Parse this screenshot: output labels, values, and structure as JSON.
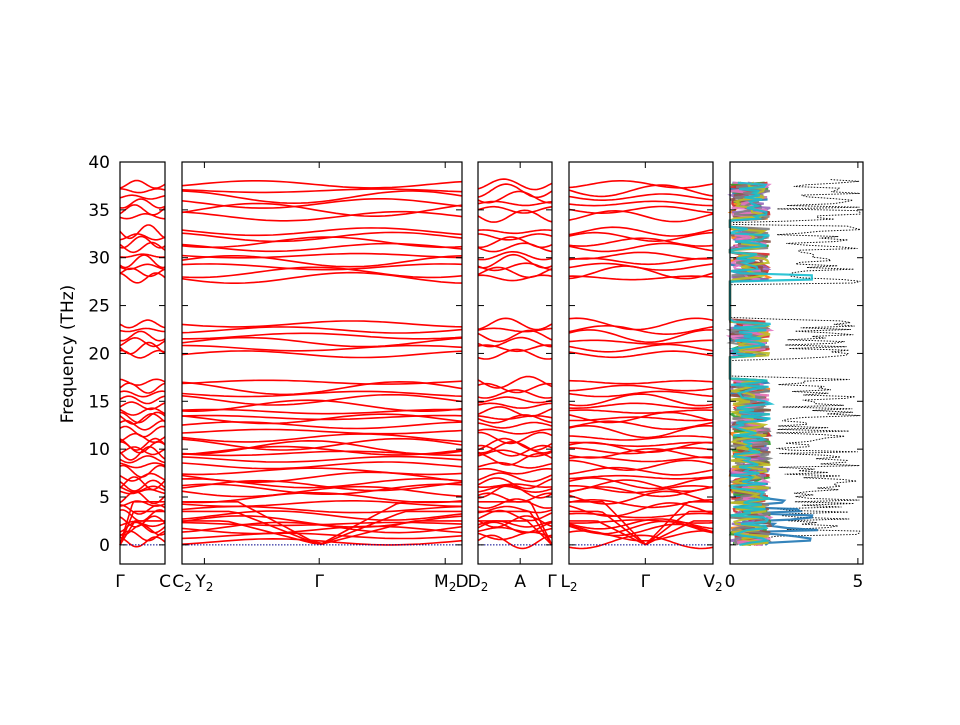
{
  "chart_data": {
    "type": "line",
    "title": "",
    "ylabel": "Frequency (THz)",
    "ylim": [
      -2,
      40
    ],
    "y_ticks": [
      "0",
      "5",
      "10",
      "15",
      "20",
      "25",
      "30",
      "35",
      "40"
    ],
    "line_color": "#ff0000",
    "zero_line_color": "#00008b",
    "band_panels": [
      {
        "ticks": [
          {
            "label": "Γ",
            "sub": "",
            "pos": 0
          },
          {
            "label": "C",
            "sub": "",
            "pos": 1
          }
        ]
      },
      {
        "ticks": [
          {
            "label": "C",
            "sub": "2",
            "pos": 0
          },
          {
            "label": "Y",
            "sub": "2",
            "pos": 0.08
          },
          {
            "label": "Γ",
            "sub": "",
            "pos": 0.49
          },
          {
            "label": "M",
            "sub": "2",
            "pos": 0.94
          },
          {
            "label": "D",
            "sub": "",
            "pos": 1
          }
        ]
      },
      {
        "ticks": [
          {
            "label": "D",
            "sub": "2",
            "pos": 0
          },
          {
            "label": "A",
            "sub": "",
            "pos": 0.57
          },
          {
            "label": "Γ",
            "sub": "",
            "pos": 1
          }
        ]
      },
      {
        "ticks": [
          {
            "label": "L",
            "sub": "2",
            "pos": 0
          },
          {
            "label": "Γ",
            "sub": "",
            "pos": 0.53
          },
          {
            "label": "V",
            "sub": "2",
            "pos": 1
          }
        ]
      }
    ],
    "dos_panel": {
      "xlim": [
        0,
        5.2
      ],
      "x_ticks": [
        0,
        5
      ]
    },
    "dos_colors": [
      "#1f77b4",
      "#ff7f0e",
      "#2ca02c",
      "#d62728",
      "#9467bd",
      "#8c564b",
      "#e377c2",
      "#7f7f7f",
      "#bcbd22",
      "#17becf"
    ],
    "frequency_bands": [
      [
        0,
        2.5
      ],
      [
        1.5,
        6.5
      ],
      [
        5.5,
        10.5
      ],
      [
        9.5,
        13.5
      ],
      [
        13.0,
        17.3
      ],
      [
        19.6,
        23.4
      ],
      [
        27.6,
        30.5
      ],
      [
        30.8,
        33.0
      ],
      [
        34.0,
        38.0
      ]
    ]
  }
}
